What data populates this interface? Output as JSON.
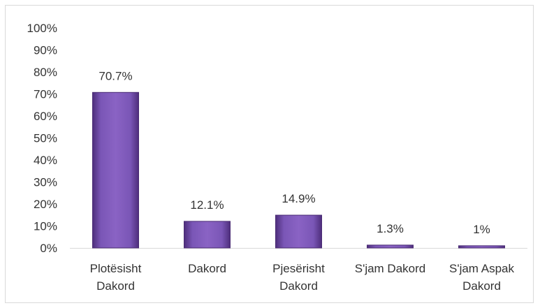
{
  "chart_data": {
    "type": "bar",
    "title": "",
    "xlabel": "",
    "ylabel": "",
    "ylim": [
      0,
      100
    ],
    "y_ticks": [
      "0%",
      "10%",
      "20%",
      "30%",
      "40%",
      "50%",
      "60%",
      "70%",
      "80%",
      "90%",
      "100%"
    ],
    "categories": [
      [
        "Plotësisht",
        "Dakord"
      ],
      [
        "Dakord"
      ],
      [
        "Pjesërisht",
        "Dakord"
      ],
      [
        "S'jam Dakord"
      ],
      [
        "S'jam Aspak",
        "Dakord"
      ]
    ],
    "values": [
      70.7,
      12.1,
      14.9,
      1.3,
      1
    ],
    "data_labels": [
      "70.7%",
      "12.1%",
      "14.9%",
      "1.3%",
      "1%"
    ],
    "grid": false,
    "legend": "none",
    "bar_color": "#7a4fb0"
  }
}
